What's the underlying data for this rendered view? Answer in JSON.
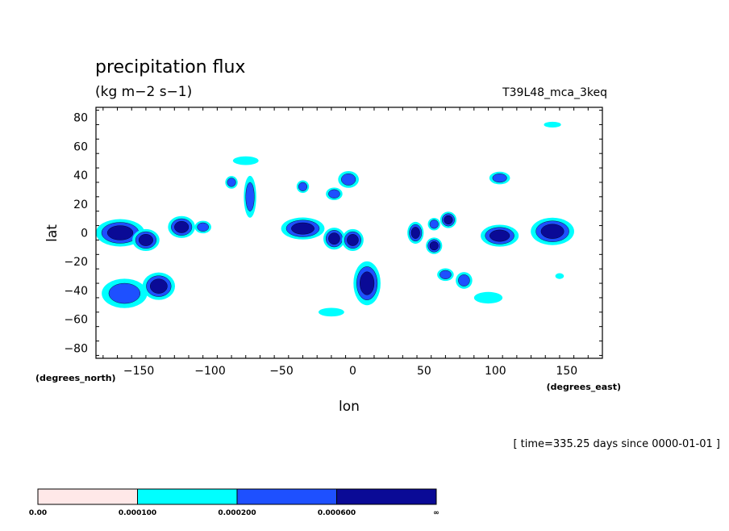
{
  "chart_data": {
    "type": "contour-map",
    "title": "precipitation flux",
    "units": "(kg m−2 s−1)",
    "run_name": "T39L48_mca_3keq",
    "xlabel": "lon",
    "ylabel": "lat",
    "x_units_label": "(degrees_east)",
    "y_units_label": "(degrees_north)",
    "time_label": "[ time=335.25 days since 0000-01-01 ]",
    "xlim": [
      -180,
      175
    ],
    "ylim": [
      -87,
      87
    ],
    "x_ticks": [
      -150,
      -100,
      -50,
      0,
      50,
      100,
      150
    ],
    "x_tick_labels": [
      "−150",
      "−100",
      "−50",
      "0",
      "50",
      "100",
      "150"
    ],
    "y_ticks": [
      80,
      60,
      40,
      20,
      0,
      -20,
      -40,
      -60,
      -80
    ],
    "y_tick_labels": [
      "80",
      "60",
      "40",
      "20",
      "0",
      "−20",
      "−40",
      "−60",
      "−80"
    ],
    "levels": [
      0.0,
      0.0001,
      0.0002,
      0.0006
    ],
    "level_labels": [
      "0.00",
      "0.000100",
      "0.000200",
      "0.000600",
      "∞"
    ],
    "level_colors": [
      "#ffe8e8",
      "#00ffff",
      "#1e50ff",
      "#0a0a96"
    ],
    "features": [
      {
        "lon": -163,
        "lat": 0,
        "rx": 9,
        "ry": 5,
        "level": 3
      },
      {
        "lon": -145,
        "lat": -5,
        "rx": 5,
        "ry": 4,
        "level": 3
      },
      {
        "lon": -136,
        "lat": -37,
        "rx": 6,
        "ry": 5,
        "level": 3
      },
      {
        "lon": -160,
        "lat": -42,
        "rx": 11,
        "ry": 7,
        "level": 2
      },
      {
        "lon": -120,
        "lat": 4,
        "rx": 5,
        "ry": 4,
        "level": 3
      },
      {
        "lon": -105,
        "lat": 4,
        "rx": 4,
        "ry": 3,
        "level": 2
      },
      {
        "lon": -72,
        "lat": 25,
        "rx": 3,
        "ry": 10,
        "level": 2
      },
      {
        "lon": -85,
        "lat": 35,
        "rx": 3,
        "ry": 3,
        "level": 2
      },
      {
        "lon": -35,
        "lat": 3,
        "rx": 8,
        "ry": 4,
        "level": 3
      },
      {
        "lon": -13,
        "lat": -4,
        "rx": 4,
        "ry": 4,
        "level": 3
      },
      {
        "lon": 0,
        "lat": -5,
        "rx": 4,
        "ry": 4,
        "level": 3
      },
      {
        "lon": 10,
        "lat": -35,
        "rx": 5,
        "ry": 8,
        "level": 3
      },
      {
        "lon": -3,
        "lat": 37,
        "rx": 5,
        "ry": 4,
        "level": 2
      },
      {
        "lon": -13,
        "lat": 27,
        "rx": 4,
        "ry": 3,
        "level": 2
      },
      {
        "lon": 44,
        "lat": 0,
        "rx": 3,
        "ry": 4,
        "level": 3
      },
      {
        "lon": 57,
        "lat": -9,
        "rx": 3,
        "ry": 3,
        "level": 3
      },
      {
        "lon": 67,
        "lat": 9,
        "rx": 3,
        "ry": 3,
        "level": 3
      },
      {
        "lon": 57,
        "lat": 6,
        "rx": 3,
        "ry": 3,
        "level": 2
      },
      {
        "lon": 103,
        "lat": -2,
        "rx": 7,
        "ry": 4,
        "level": 3
      },
      {
        "lon": 140,
        "lat": 1,
        "rx": 8,
        "ry": 5,
        "level": 3
      },
      {
        "lon": 103,
        "lat": 38,
        "rx": 5,
        "ry": 3,
        "level": 2
      },
      {
        "lon": 78,
        "lat": -33,
        "rx": 4,
        "ry": 4,
        "level": 2
      },
      {
        "lon": 65,
        "lat": -29,
        "rx": 4,
        "ry": 3,
        "level": 2
      },
      {
        "lon": -35,
        "lat": 32,
        "rx": 3,
        "ry": 3,
        "level": 2
      },
      {
        "lon": -75,
        "lat": 50,
        "rx": 9,
        "ry": 3,
        "level": 1
      },
      {
        "lon": -15,
        "lat": -55,
        "rx": 9,
        "ry": 3,
        "level": 1
      },
      {
        "lon": 95,
        "lat": -45,
        "rx": 10,
        "ry": 4,
        "level": 1
      },
      {
        "lon": 140,
        "lat": 75,
        "rx": 6,
        "ry": 2,
        "level": 1
      },
      {
        "lon": 145,
        "lat": -30,
        "rx": 3,
        "ry": 2,
        "level": 1
      }
    ]
  }
}
